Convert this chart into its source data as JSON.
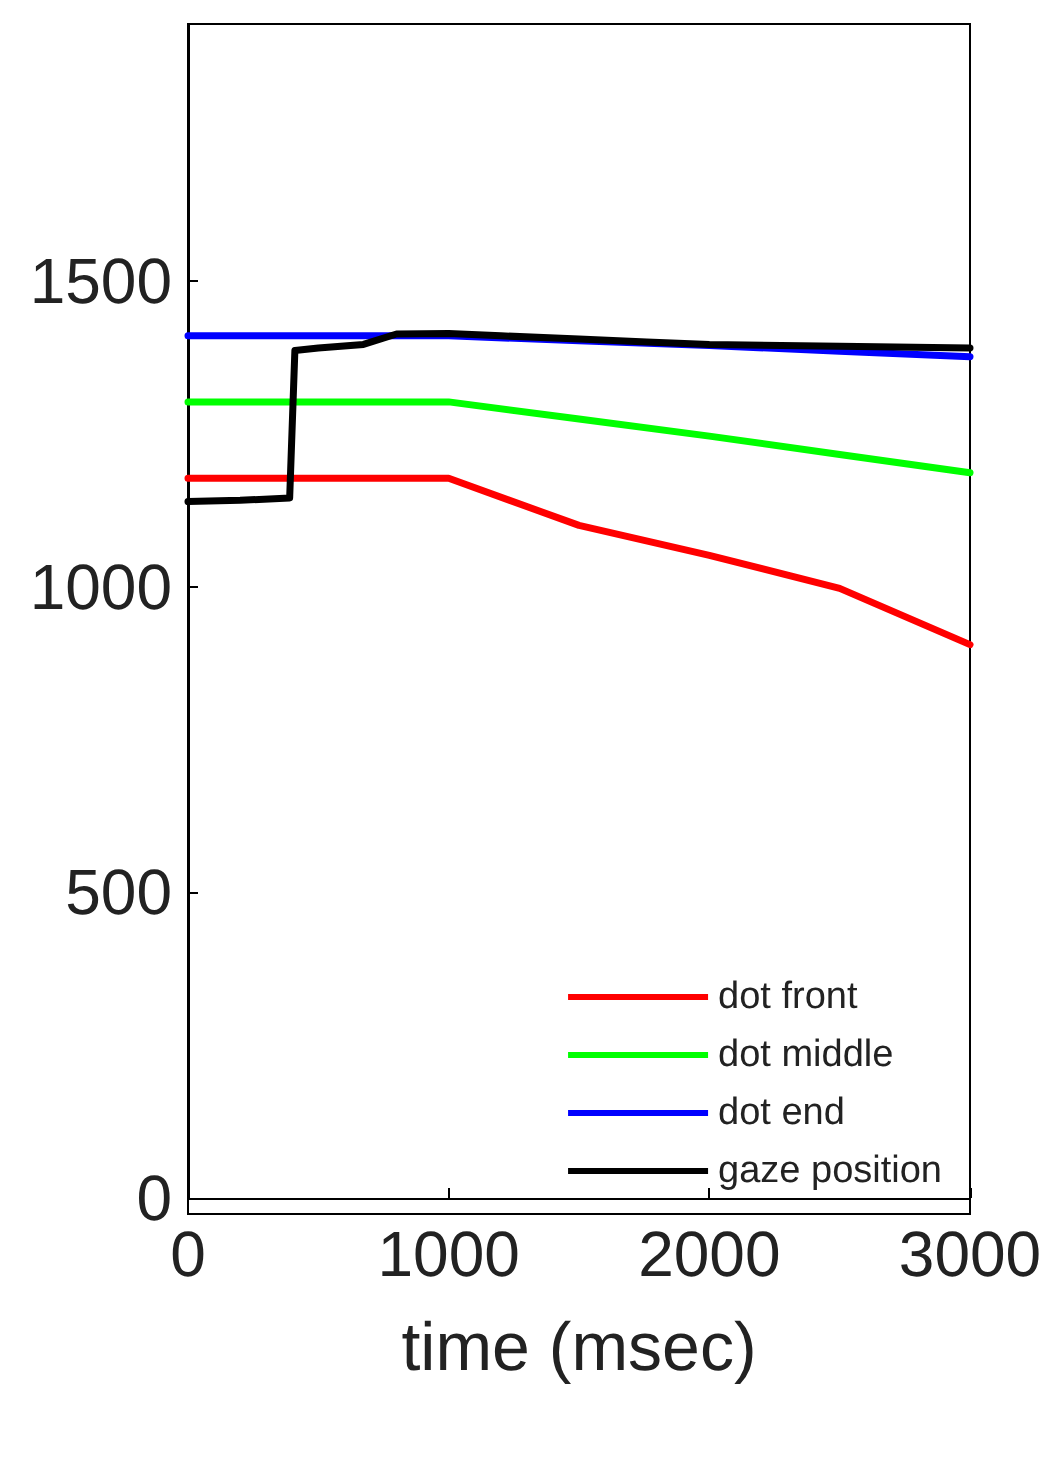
{
  "chart_data": {
    "type": "line",
    "xlabel": "time (msec)",
    "x": [
      0,
      1000,
      1500,
      2000,
      2500,
      3000
    ],
    "xlim": [
      0,
      3000
    ],
    "xticks": [
      0,
      1000,
      2000,
      3000
    ],
    "ylim": [
      0,
      1920
    ],
    "yticks": [
      0,
      500,
      1000,
      1500
    ],
    "grid": false,
    "legend": "bottom right",
    "line_style": "solid",
    "marker": "none",
    "series": [
      {
        "name": "dot front",
        "color": "#ff0000",
        "values": [
          1177,
          1177,
          1100,
          1051,
          997,
          905
        ]
      },
      {
        "name": "dot middle",
        "color": "#00ff00",
        "values": [
          1302,
          1302,
          1274,
          1246,
          1216,
          1186
        ]
      },
      {
        "name": "dot end",
        "color": "#0000ff",
        "values": [
          1410,
          1410,
          1402,
          1394,
          1385,
          1376
        ]
      },
      {
        "name": "gaze position",
        "color": "#000000",
        "x": [
          0,
          200,
          390,
          410,
          500,
          673,
          800,
          1000,
          1200,
          1500,
          1760,
          2000,
          2500,
          3000
        ],
        "values": [
          1139,
          1141,
          1145,
          1386,
          1390,
          1396,
          1413,
          1414,
          1410,
          1405,
          1400,
          1396,
          1393,
          1390
        ]
      }
    ]
  }
}
